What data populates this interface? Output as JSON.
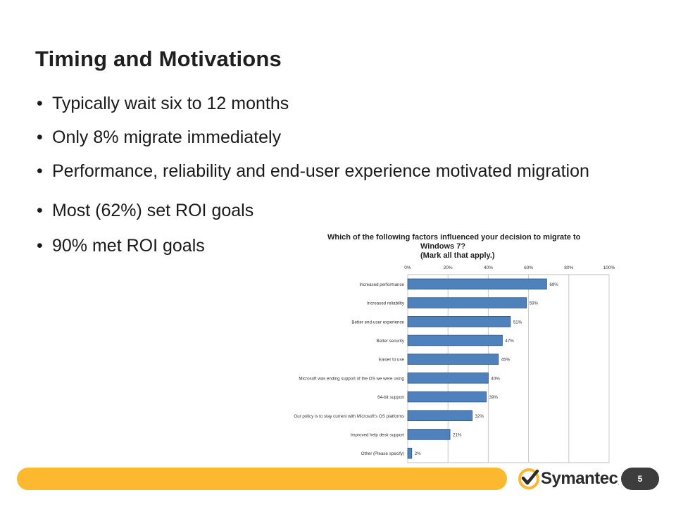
{
  "slide": {
    "title": "Timing and Motivations",
    "page_number": "5"
  },
  "bullets": [
    {
      "marker": "•",
      "text": "Typically wait six to 12 months"
    },
    {
      "marker": "•",
      "text": "Only 8% migrate immediately"
    },
    {
      "marker": "•",
      "text": "Performance, reliability and end-user experience motivated migration"
    },
    {
      "marker": "•",
      "text": "Most  (62%) set ROI goals"
    },
    {
      "marker": "•",
      "text": "90% met ROI goals"
    }
  ],
  "logo": {
    "word": "Symantec",
    "tm": ".",
    "colors": {
      "mark": "#fcb82e",
      "check": "#2b2b2b"
    }
  },
  "colors": {
    "footer_bar": "#fcb82e",
    "page_badge": "#3d3d3d",
    "bar_fill": "#4f81bd",
    "bar_stroke": "#2c5485"
  },
  "chart_data": {
    "type": "bar",
    "orientation": "horizontal",
    "title_lines": [
      "Which of the following factors influenced your decision to migrate to",
      "Windows 7?",
      "(Mark all that apply.)"
    ],
    "categories": [
      "Increased performance",
      "Increased reliability",
      "Better end-user experience",
      "Better security",
      "Easier to use",
      "Microsoft was ending support of the OS we were using",
      "64-bit support",
      "Our policy is to stay current with Microsoft's OS platforms",
      "Improved help desk support",
      "Other (Please specify)"
    ],
    "values": [
      69,
      59,
      51,
      47,
      45,
      40,
      39,
      32,
      21,
      2
    ],
    "value_labels": [
      "69%",
      "59%",
      "51%",
      "47%",
      "45%",
      "40%",
      "39%",
      "32%",
      "21%",
      "2%"
    ],
    "xlim": [
      0,
      100
    ],
    "ticks": [
      0,
      20,
      40,
      60,
      80,
      100
    ],
    "tick_labels": [
      "0%",
      "20%",
      "40%",
      "60%",
      "80%",
      "100%"
    ],
    "axis_position": "top",
    "grid": true,
    "legend": "none"
  }
}
